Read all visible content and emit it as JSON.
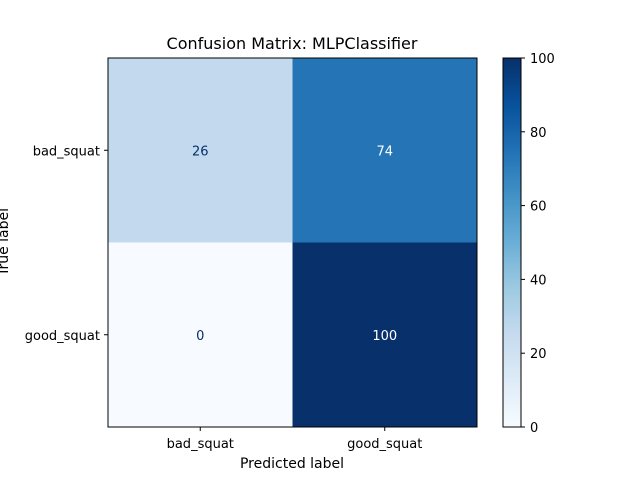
{
  "chart_data": {
    "type": "heatmap",
    "title": "Confusion Matrix: MLPClassifier",
    "xlabel": "Predicted label",
    "ylabel": "True label",
    "x_categories": [
      "bad_squat",
      "good_squat"
    ],
    "y_categories": [
      "bad_squat",
      "good_squat"
    ],
    "values": [
      [
        26,
        74
      ],
      [
        0,
        100
      ]
    ],
    "colormap": "Blues",
    "colorbar": {
      "min": 0,
      "max": 100,
      "ticks": [
        "0",
        "20",
        "40",
        "60",
        "80",
        "100"
      ]
    },
    "grid": false
  }
}
